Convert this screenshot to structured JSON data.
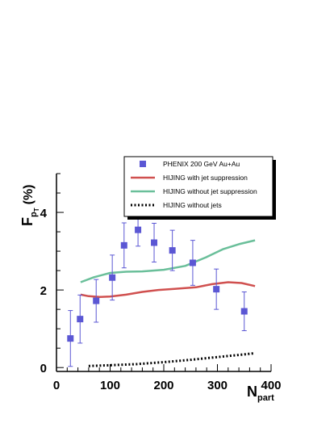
{
  "chart_data": {
    "type": "scatter",
    "xlabel": "N",
    "xlabel_sub": "part",
    "ylabel": "F",
    "ylabel_sub1": "p",
    "ylabel_sub2": "T",
    "ylabel_unit": "(%)",
    "xlim": [
      0,
      400
    ],
    "ylim": [
      -0.1,
      5
    ],
    "x_ticks": [
      0,
      100,
      200,
      300,
      400
    ],
    "y_ticks": [
      0,
      2,
      4
    ],
    "x_tick_labels": [
      "0",
      "100",
      "200",
      "300",
      "400"
    ],
    "y_tick_labels": [
      "0",
      "2",
      "4"
    ],
    "grid": false,
    "legend_placement": "top-right",
    "series": [
      {
        "name": "PHENIX 200 GeV Au+Au",
        "kind": "points",
        "color": "#5b57d4",
        "x": [
          26,
          44,
          74,
          104,
          126,
          152,
          182,
          216,
          254,
          298,
          350
        ],
        "y": [
          0.75,
          1.25,
          1.72,
          2.32,
          3.15,
          3.55,
          3.22,
          3.02,
          2.7,
          2.02,
          1.45
        ],
        "yerr": [
          0.72,
          0.62,
          0.55,
          0.58,
          0.58,
          0.42,
          0.5,
          0.52,
          0.58,
          0.52,
          0.5
        ]
      },
      {
        "name": "HIJING with jet suppression",
        "kind": "line",
        "color": "#d0504f",
        "x": [
          45,
          60,
          80,
          100,
          130,
          160,
          190,
          220,
          260,
          290,
          320,
          345,
          370
        ],
        "y": [
          1.88,
          1.84,
          1.82,
          1.83,
          1.88,
          1.95,
          2.0,
          2.03,
          2.07,
          2.15,
          2.2,
          2.18,
          2.1
        ]
      },
      {
        "name": "HIJING without jet suppression",
        "kind": "line",
        "color": "#6abf9a",
        "x": [
          45,
          70,
          100,
          130,
          160,
          200,
          240,
          280,
          310,
          340,
          370
        ],
        "y": [
          2.2,
          2.33,
          2.44,
          2.47,
          2.48,
          2.52,
          2.62,
          2.85,
          3.05,
          3.18,
          3.28
        ]
      },
      {
        "name": "HIJING without jets",
        "kind": "dotted",
        "color": "#000000",
        "x": [
          60,
          100,
          150,
          200,
          250,
          300,
          350,
          370
        ],
        "y": [
          0.04,
          0.06,
          0.09,
          0.14,
          0.2,
          0.27,
          0.34,
          0.37
        ]
      }
    ]
  }
}
